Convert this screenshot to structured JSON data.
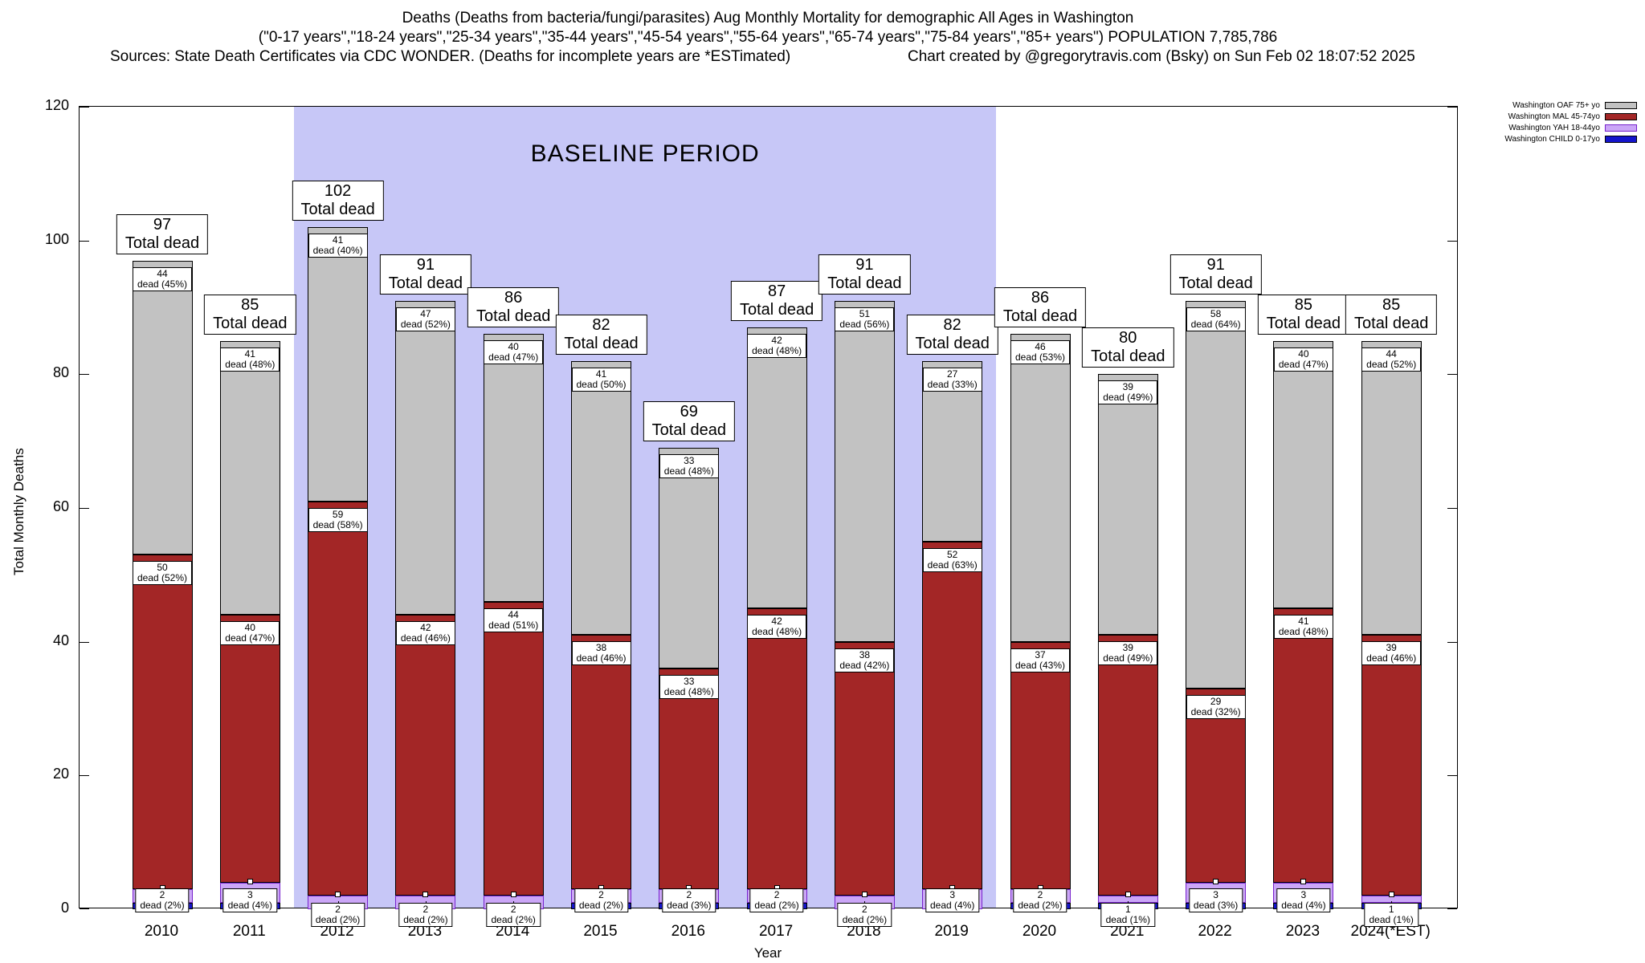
{
  "header": {
    "title_line1": "Deaths (Deaths from bacteria/fungi/parasites) Aug Monthly Mortality for demographic All Ages in Washington",
    "title_line2": "(\"0-17 years\",\"18-24 years\",\"25-34 years\",\"35-44 years\",\"45-54 years\",\"55-64 years\",\"65-74 years\",\"75-84 years\",\"85+ years\") POPULATION 7,785,786",
    "sources": "Sources: State Death Certificates via CDC WONDER. (Deaths for incomplete years are *ESTimated)",
    "credit": "Chart created by @gregorytravis.com (Bsky) on Sun Feb 02 18:07:52 2025"
  },
  "chart_data": {
    "type": "bar",
    "stacked": true,
    "title": "Deaths (Deaths from bacteria/fungi/parasites) Aug Monthly Mortality for demographic All Ages in Washington",
    "xlabel": "Year",
    "ylabel": "Total Monthly Deaths",
    "ylim": [
      0,
      120
    ],
    "ytick_step": 20,
    "grid": false,
    "legend_position": "top-right",
    "baseline_region": {
      "label": "BASELINE PERIOD",
      "start": "2012",
      "end": "2019",
      "color": "#c7c7f7"
    },
    "labels": {
      "dead_word": "dead",
      "total_word": "Total dead"
    },
    "colors": {
      "oaf": "#c2c2c2",
      "mal": "#a32626",
      "yah": "#cba6f7",
      "yah_border": "#7722cc",
      "child": "#1414cc",
      "child_border": "#000000"
    },
    "legend": [
      {
        "name": "Washington OAF 75+ yo",
        "color": "#c2c2c2",
        "border": "#000000"
      },
      {
        "name": "Washington MAL 45-74yo",
        "color": "#a32626",
        "border": "#000000"
      },
      {
        "name": "Washington YAH 18-44yo",
        "color": "#cba6f7",
        "border": "#7722cc"
      },
      {
        "name": "Washington CHILD 0-17yo",
        "color": "#1414cc",
        "border": "#000000"
      }
    ],
    "categories": [
      "2010",
      "2011",
      "2012",
      "2013",
      "2014",
      "2015",
      "2016",
      "2017",
      "2018",
      "2019",
      "2020",
      "2021",
      "2022",
      "2023",
      "2024(*EST)"
    ],
    "series_note": "stacked bottom-to-top: child, yah, mal, oaf",
    "years": [
      {
        "year": "2010",
        "total": 97,
        "oaf": {
          "value": 44,
          "pct": 45
        },
        "mal": {
          "value": 50,
          "pct": 52
        },
        "yah": {
          "value": 2,
          "pct": 2,
          "label_pos": "above"
        },
        "child": {
          "value": 1
        }
      },
      {
        "year": "2011",
        "total": 85,
        "oaf": {
          "value": 41,
          "pct": 48
        },
        "mal": {
          "value": 40,
          "pct": 47
        },
        "yah": {
          "value": 3,
          "pct": 4,
          "label_pos": "above"
        },
        "child": {
          "value": 1
        }
      },
      {
        "year": "2012",
        "total": 102,
        "oaf": {
          "value": 41,
          "pct": 40
        },
        "mal": {
          "value": 59,
          "pct": 58
        },
        "yah": {
          "value": 2,
          "pct": 2,
          "label_pos": "below"
        },
        "child": {
          "value": 0
        }
      },
      {
        "year": "2013",
        "total": 91,
        "oaf": {
          "value": 47,
          "pct": 52
        },
        "mal": {
          "value": 42,
          "pct": 46
        },
        "yah": {
          "value": 2,
          "pct": 2,
          "label_pos": "below"
        },
        "child": {
          "value": 0
        }
      },
      {
        "year": "2014",
        "total": 86,
        "oaf": {
          "value": 40,
          "pct": 47
        },
        "mal": {
          "value": 44,
          "pct": 51
        },
        "yah": {
          "value": 2,
          "pct": 2,
          "label_pos": "below"
        },
        "child": {
          "value": 0
        }
      },
      {
        "year": "2015",
        "total": 82,
        "oaf": {
          "value": 41,
          "pct": 50
        },
        "mal": {
          "value": 38,
          "pct": 46
        },
        "yah": {
          "value": 2,
          "pct": 2,
          "label_pos": "above"
        },
        "child": {
          "value": 1
        }
      },
      {
        "year": "2016",
        "total": 69,
        "oaf": {
          "value": 33,
          "pct": 48
        },
        "mal": {
          "value": 33,
          "pct": 48
        },
        "yah": {
          "value": 2,
          "pct": 3,
          "label_pos": "above"
        },
        "child": {
          "value": 1
        }
      },
      {
        "year": "2017",
        "total": 87,
        "oaf": {
          "value": 42,
          "pct": 48
        },
        "mal": {
          "value": 42,
          "pct": 48
        },
        "yah": {
          "value": 2,
          "pct": 2,
          "label_pos": "above"
        },
        "child": {
          "value": 1
        }
      },
      {
        "year": "2018",
        "total": 91,
        "oaf": {
          "value": 51,
          "pct": 56
        },
        "mal": {
          "value": 38,
          "pct": 42
        },
        "yah": {
          "value": 2,
          "pct": 2,
          "label_pos": "below"
        },
        "child": {
          "value": 0
        }
      },
      {
        "year": "2019",
        "total": 82,
        "oaf": {
          "value": 27,
          "pct": 33
        },
        "mal": {
          "value": 52,
          "pct": 63
        },
        "yah": {
          "value": 3,
          "pct": 4,
          "label_pos": "above"
        },
        "child": {
          "value": 0
        }
      },
      {
        "year": "2020",
        "total": 86,
        "oaf": {
          "value": 46,
          "pct": 53
        },
        "mal": {
          "value": 37,
          "pct": 43
        },
        "yah": {
          "value": 2,
          "pct": 2,
          "label_pos": "above"
        },
        "child": {
          "value": 1
        }
      },
      {
        "year": "2021",
        "total": 80,
        "oaf": {
          "value": 39,
          "pct": 49
        },
        "mal": {
          "value": 39,
          "pct": 49
        },
        "yah": {
          "value": 1,
          "pct": 1,
          "label_pos": "below"
        },
        "child": {
          "value": 1
        }
      },
      {
        "year": "2022",
        "total": 91,
        "oaf": {
          "value": 58,
          "pct": 64
        },
        "mal": {
          "value": 29,
          "pct": 32
        },
        "yah": {
          "value": 3,
          "pct": 3,
          "label_pos": "above"
        },
        "child": {
          "value": 1
        }
      },
      {
        "year": "2023",
        "total": 85,
        "oaf": {
          "value": 40,
          "pct": 47
        },
        "mal": {
          "value": 41,
          "pct": 48
        },
        "yah": {
          "value": 3,
          "pct": 4,
          "label_pos": "above"
        },
        "child": {
          "value": 1
        }
      },
      {
        "year": "2024(*EST)",
        "total": 85,
        "oaf": {
          "value": 44,
          "pct": 52
        },
        "mal": {
          "value": 39,
          "pct": 46
        },
        "yah": {
          "value": 1,
          "pct": 1,
          "label_pos": "below"
        },
        "child": {
          "value": 1
        }
      }
    ]
  }
}
